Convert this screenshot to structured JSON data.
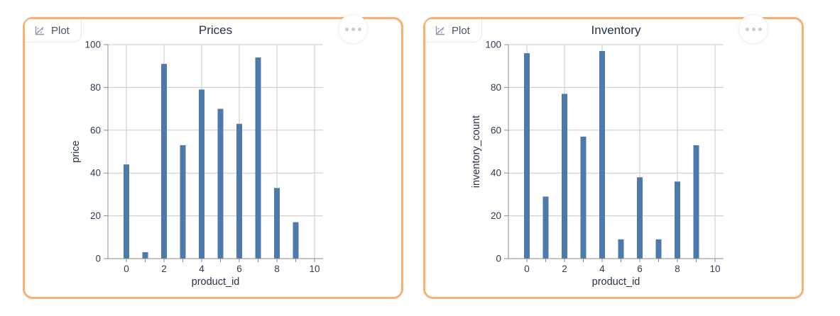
{
  "cards": [
    {
      "tab_label": "Plot",
      "title": "Prices"
    },
    {
      "tab_label": "Plot",
      "title": "Inventory"
    }
  ],
  "chart_data": [
    {
      "type": "bar",
      "title": "Prices",
      "xlabel": "product_id",
      "ylabel": "price",
      "categories": [
        0,
        1,
        2,
        3,
        4,
        5,
        6,
        7,
        8,
        9
      ],
      "values": [
        44,
        3,
        91,
        53,
        79,
        70,
        63,
        94,
        33,
        17
      ],
      "xlim": [
        -1,
        10.5
      ],
      "ylim": [
        0,
        100
      ],
      "yticks": [
        0,
        20,
        40,
        60,
        80,
        100
      ],
      "xticks": [
        0,
        1,
        2,
        3,
        4,
        5,
        6,
        7,
        8,
        9,
        10
      ],
      "xtick_labels": [
        0,
        2,
        4,
        6,
        8,
        10
      ],
      "grid": true,
      "legend": false
    },
    {
      "type": "bar",
      "title": "Inventory",
      "xlabel": "product_id",
      "ylabel": "inventory_count",
      "categories": [
        0,
        1,
        2,
        3,
        4,
        5,
        6,
        7,
        8,
        9
      ],
      "values": [
        96,
        29,
        77,
        57,
        97,
        9,
        38,
        9,
        36,
        53
      ],
      "xlim": [
        -1,
        10.5
      ],
      "ylim": [
        0,
        100
      ],
      "yticks": [
        0,
        20,
        40,
        60,
        80,
        100
      ],
      "xticks": [
        0,
        1,
        2,
        3,
        4,
        5,
        6,
        7,
        8,
        9,
        10
      ],
      "xtick_labels": [
        0,
        2,
        4,
        6,
        8,
        10
      ],
      "grid": true,
      "legend": false
    }
  ],
  "colors": {
    "card_border": "#f7b173",
    "bar": "#4d7aab",
    "grid": "#c9c9c9",
    "axis": "#8b8b8b",
    "tick_text": "#303b52",
    "title_text": "#263147",
    "tab_text": "#4a5568",
    "tab_icon": "#8e97a8",
    "menu_dots": "#c9cdd1"
  }
}
